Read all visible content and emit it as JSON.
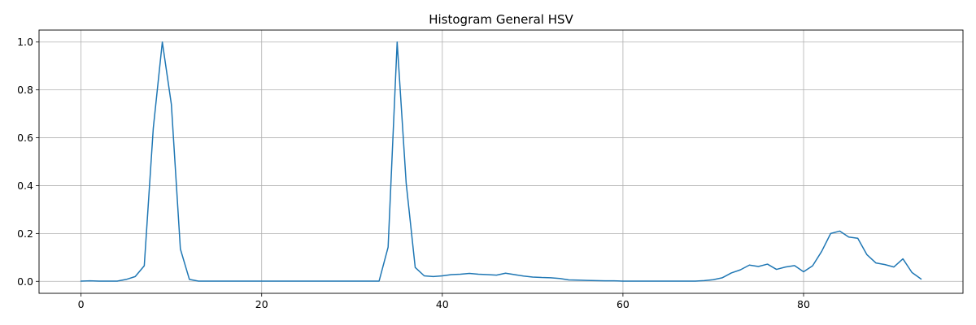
{
  "chart_data": {
    "type": "line",
    "title": "Histogram General HSV",
    "xlabel": "",
    "ylabel": "",
    "xlim": [
      -4.65,
      97.65
    ],
    "ylim": [
      -0.05,
      1.05
    ],
    "xticks": [
      0,
      20,
      40,
      60,
      80
    ],
    "xtick_labels": [
      "0",
      "20",
      "40",
      "60",
      "80"
    ],
    "yticks": [
      0.0,
      0.2,
      0.4,
      0.6,
      0.8,
      1.0
    ],
    "ytick_labels": [
      "0.0",
      "0.2",
      "0.4",
      "0.6",
      "0.8",
      "1.0"
    ],
    "grid": true,
    "series": [
      {
        "color": "#1f77b4",
        "x": [
          0,
          1,
          2,
          3,
          4,
          5,
          6,
          7,
          8,
          9,
          10,
          11,
          12,
          13,
          14,
          15,
          16,
          17,
          18,
          19,
          20,
          21,
          22,
          23,
          24,
          25,
          26,
          27,
          28,
          29,
          30,
          31,
          32,
          33,
          34,
          35,
          36,
          37,
          38,
          39,
          40,
          41,
          42,
          43,
          44,
          45,
          46,
          47,
          48,
          49,
          50,
          51,
          52,
          53,
          54,
          55,
          56,
          57,
          58,
          59,
          60,
          61,
          62,
          63,
          64,
          65,
          66,
          67,
          68,
          69,
          70,
          71,
          72,
          73,
          74,
          75,
          76,
          77,
          78,
          79,
          80,
          81,
          82,
          83,
          84,
          85,
          86,
          87,
          88,
          89,
          90,
          91,
          92,
          93
        ],
        "values": [
          0.001,
          0.002,
          0.001,
          0.001,
          0.001,
          0.008,
          0.02,
          0.065,
          0.64,
          1.0,
          0.74,
          0.135,
          0.008,
          0.001,
          0.001,
          0.001,
          0.001,
          0.001,
          0.001,
          0.001,
          0.001,
          0.001,
          0.001,
          0.001,
          0.001,
          0.001,
          0.001,
          0.001,
          0.001,
          0.001,
          0.001,
          0.001,
          0.001,
          0.001,
          0.143,
          1.0,
          0.41,
          0.058,
          0.023,
          0.02,
          0.023,
          0.028,
          0.03,
          0.033,
          0.03,
          0.028,
          0.026,
          0.034,
          0.028,
          0.022,
          0.018,
          0.016,
          0.015,
          0.012,
          0.006,
          0.005,
          0.004,
          0.003,
          0.002,
          0.002,
          0.001,
          0.001,
          0.001,
          0.001,
          0.001,
          0.001,
          0.001,
          0.001,
          0.001,
          0.003,
          0.007,
          0.015,
          0.035,
          0.048,
          0.068,
          0.062,
          0.072,
          0.05,
          0.06,
          0.066,
          0.04,
          0.065,
          0.125,
          0.2,
          0.21,
          0.185,
          0.18,
          0.112,
          0.077,
          0.07,
          0.06,
          0.094,
          0.037,
          0.01
        ]
      }
    ]
  }
}
